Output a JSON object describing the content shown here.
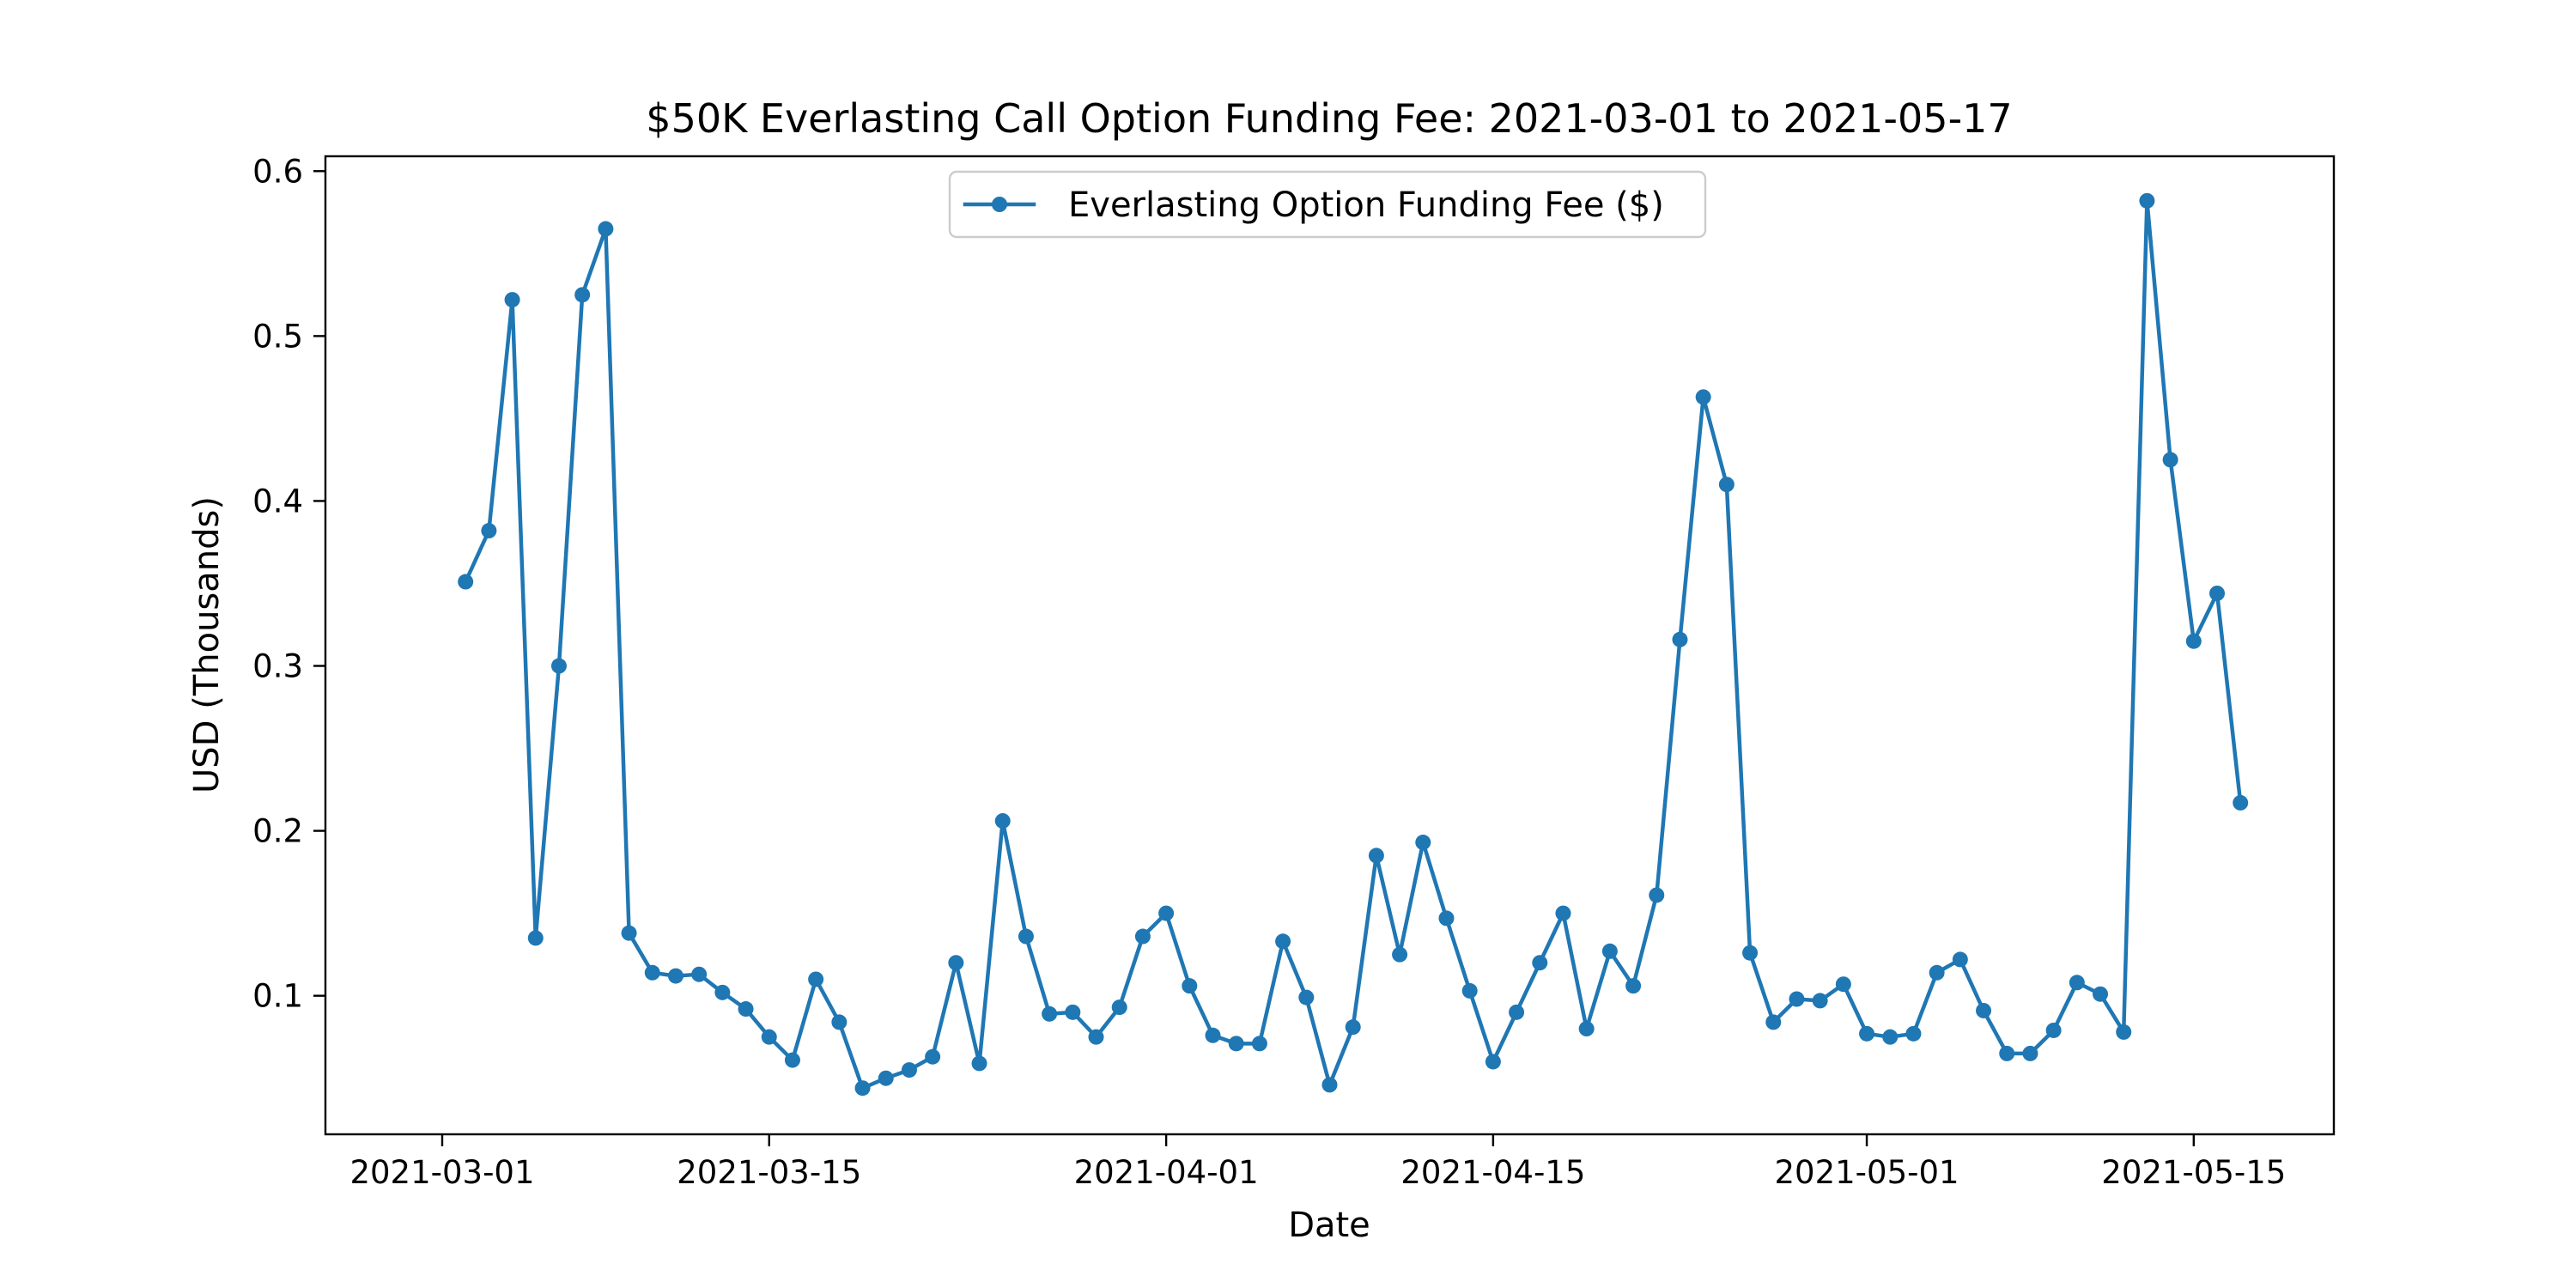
{
  "chart_data": {
    "type": "line",
    "title": "$50K Everlasting Call Option Funding Fee: 2021-03-01 to 2021-05-17",
    "xlabel": "Date",
    "ylabel": "USD (Thousands)",
    "x_axis": {
      "type": "date",
      "range": [
        "2021-02-24",
        "2021-05-21"
      ],
      "ticks": [
        "2021-03-01",
        "2021-03-15",
        "2021-04-01",
        "2021-04-15",
        "2021-05-01",
        "2021-05-15"
      ]
    },
    "y_axis": {
      "range": [
        0.016,
        0.609
      ],
      "ticks": [
        0.1,
        0.2,
        0.3,
        0.4,
        0.5,
        0.6
      ],
      "tick_labels": [
        "0.1",
        "0.2",
        "0.3",
        "0.4",
        "0.5",
        "0.6"
      ]
    },
    "grid": false,
    "legend": {
      "placement": "upper center"
    },
    "series": [
      {
        "name": "Everlasting Option Funding Fee ($)",
        "color": "#1f77b4",
        "marker": "circle",
        "x_start": "2021-03-02",
        "x_end": "2021-05-17",
        "x_step": "1 day",
        "values": [
          0.351,
          0.382,
          0.522,
          0.135,
          0.3,
          0.525,
          0.565,
          0.138,
          0.114,
          0.112,
          0.113,
          0.102,
          0.092,
          0.075,
          0.061,
          0.11,
          0.084,
          0.044,
          0.05,
          0.055,
          0.063,
          0.12,
          0.059,
          0.206,
          0.136,
          0.089,
          0.09,
          0.075,
          0.093,
          0.136,
          0.15,
          0.106,
          0.076,
          0.071,
          0.071,
          0.133,
          0.099,
          0.046,
          0.081,
          0.185,
          0.125,
          0.193,
          0.147,
          0.103,
          0.06,
          0.09,
          0.12,
          0.15,
          0.08,
          0.127,
          0.106,
          0.161,
          0.316,
          0.463,
          0.41,
          0.126,
          0.084,
          0.098,
          0.097,
          0.107,
          0.077,
          0.075,
          0.077,
          0.114,
          0.122,
          0.091,
          0.065,
          0.065,
          0.079,
          0.108,
          0.101,
          0.078,
          0.582,
          0.425,
          0.315,
          0.344,
          0.217
        ]
      }
    ]
  }
}
